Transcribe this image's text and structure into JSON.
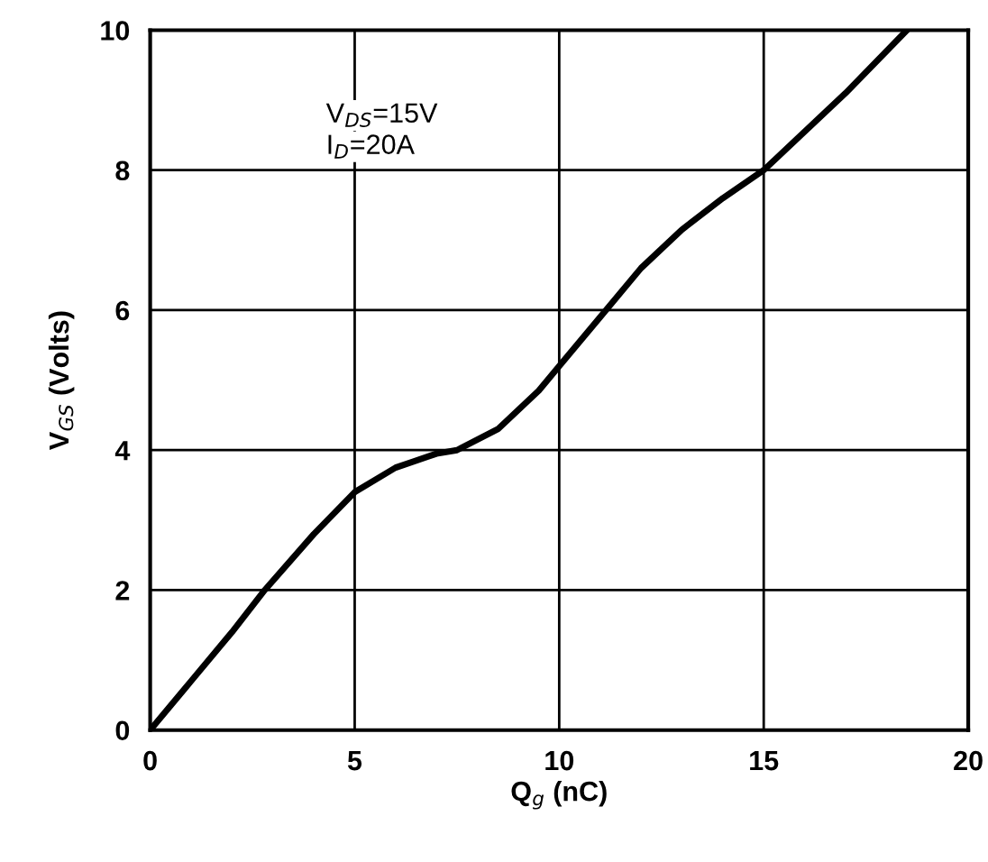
{
  "chart_data": {
    "type": "line",
    "xlabel": "Q$_{g}$ (nC)",
    "ylabel": "V$_{GS}$ (Volts)",
    "x": [
      0,
      1,
      2,
      2.8,
      4,
      5,
      6,
      7,
      7.5,
      8.5,
      9.5,
      10,
      11,
      12,
      13,
      14,
      15,
      16,
      17,
      18.5
    ],
    "series": [
      {
        "color": "#000000",
        "values": [
          0,
          0.7,
          1.4,
          2.0,
          2.8,
          3.4,
          3.75,
          3.95,
          4.0,
          4.3,
          4.85,
          5.2,
          5.9,
          6.6,
          7.15,
          7.6,
          8.0,
          8.55,
          9.1,
          10.0
        ]
      }
    ],
    "annotations": [
      "V$_{DS}$=15V",
      "I$_{D}$=20A"
    ],
    "xlim": [
      0,
      20
    ],
    "ylim": [
      0,
      10
    ],
    "xticks": [
      0,
      5,
      10,
      15,
      20
    ],
    "yticks": [
      0,
      2,
      4,
      6,
      8,
      10
    ],
    "grid": true,
    "marker": "none",
    "line_style": "solid"
  }
}
